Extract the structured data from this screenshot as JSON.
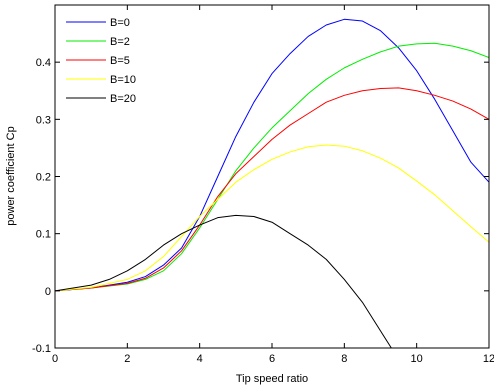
{
  "chart_data": {
    "type": "line",
    "title": "",
    "xlabel": "Tip speed ratio",
    "ylabel": "power coefficient Cp",
    "xlim": [
      0,
      12
    ],
    "ylim": [
      -0.1,
      0.5
    ],
    "xticks": [
      0,
      2,
      4,
      6,
      8,
      10,
      12
    ],
    "yticks": [
      -0.1,
      0,
      0.1,
      0.2,
      0.3,
      0.4
    ],
    "grid": false,
    "legend_position": "top-left",
    "series": [
      {
        "name": "B=0",
        "color": "#0000ff",
        "points": [
          [
            0,
            0
          ],
          [
            1,
            0.005
          ],
          [
            2,
            0.015
          ],
          [
            2.5,
            0.025
          ],
          [
            3,
            0.045
          ],
          [
            3.5,
            0.075
          ],
          [
            4,
            0.13
          ],
          [
            4.5,
            0.2
          ],
          [
            5,
            0.27
          ],
          [
            5.5,
            0.33
          ],
          [
            6,
            0.38
          ],
          [
            6.5,
            0.415
          ],
          [
            7,
            0.445
          ],
          [
            7.5,
            0.465
          ],
          [
            8,
            0.475
          ],
          [
            8.5,
            0.472
          ],
          [
            9,
            0.455
          ],
          [
            9.5,
            0.425
          ],
          [
            10,
            0.385
          ],
          [
            10.5,
            0.335
          ],
          [
            11,
            0.28
          ],
          [
            11.5,
            0.225
          ],
          [
            12,
            0.19
          ]
        ]
      },
      {
        "name": "B=2",
        "color": "#00ee00",
        "points": [
          [
            0,
            0
          ],
          [
            1,
            0.005
          ],
          [
            2,
            0.012
          ],
          [
            2.5,
            0.02
          ],
          [
            3,
            0.035
          ],
          [
            3.5,
            0.065
          ],
          [
            4,
            0.11
          ],
          [
            4.5,
            0.16
          ],
          [
            5,
            0.21
          ],
          [
            5.5,
            0.25
          ],
          [
            6,
            0.285
          ],
          [
            6.5,
            0.315
          ],
          [
            7,
            0.345
          ],
          [
            7.5,
            0.37
          ],
          [
            8,
            0.39
          ],
          [
            8.5,
            0.405
          ],
          [
            9,
            0.418
          ],
          [
            9.5,
            0.428
          ],
          [
            10,
            0.432
          ],
          [
            10.5,
            0.433
          ],
          [
            11,
            0.428
          ],
          [
            11.5,
            0.42
          ],
          [
            12,
            0.408
          ]
        ]
      },
      {
        "name": "B=5",
        "color": "#ff0000",
        "points": [
          [
            0,
            0
          ],
          [
            1,
            0.005
          ],
          [
            2,
            0.013
          ],
          [
            2.5,
            0.022
          ],
          [
            3,
            0.04
          ],
          [
            3.5,
            0.07
          ],
          [
            4,
            0.115
          ],
          [
            4.5,
            0.165
          ],
          [
            5,
            0.205
          ],
          [
            5.5,
            0.235
          ],
          [
            6,
            0.265
          ],
          [
            6.5,
            0.29
          ],
          [
            7,
            0.31
          ],
          [
            7.5,
            0.33
          ],
          [
            8,
            0.342
          ],
          [
            8.5,
            0.35
          ],
          [
            9,
            0.354
          ],
          [
            9.5,
            0.355
          ],
          [
            10,
            0.35
          ],
          [
            10.5,
            0.342
          ],
          [
            11,
            0.332
          ],
          [
            11.5,
            0.318
          ],
          [
            12,
            0.3
          ]
        ]
      },
      {
        "name": "B=10",
        "color": "#ffff00",
        "points": [
          [
            0,
            0
          ],
          [
            1,
            0.006
          ],
          [
            2,
            0.02
          ],
          [
            2.5,
            0.035
          ],
          [
            3,
            0.06
          ],
          [
            3.5,
            0.095
          ],
          [
            4,
            0.13
          ],
          [
            4.5,
            0.16
          ],
          [
            5,
            0.19
          ],
          [
            5.5,
            0.212
          ],
          [
            6,
            0.23
          ],
          [
            6.5,
            0.243
          ],
          [
            7,
            0.252
          ],
          [
            7.5,
            0.255
          ],
          [
            8,
            0.253
          ],
          [
            8.5,
            0.245
          ],
          [
            9,
            0.232
          ],
          [
            9.5,
            0.215
          ],
          [
            10,
            0.192
          ],
          [
            10.5,
            0.168
          ],
          [
            11,
            0.14
          ],
          [
            11.5,
            0.112
          ],
          [
            12,
            0.085
          ]
        ]
      },
      {
        "name": "B=20",
        "color": "#000000",
        "points": [
          [
            0,
            0
          ],
          [
            1,
            0.01
          ],
          [
            1.5,
            0.02
          ],
          [
            2,
            0.035
          ],
          [
            2.5,
            0.055
          ],
          [
            3,
            0.08
          ],
          [
            3.5,
            0.1
          ],
          [
            4,
            0.115
          ],
          [
            4.5,
            0.128
          ],
          [
            5,
            0.132
          ],
          [
            5.5,
            0.13
          ],
          [
            6,
            0.12
          ],
          [
            6.5,
            0.1
          ],
          [
            7,
            0.08
          ],
          [
            7.5,
            0.055
          ],
          [
            8,
            0.02
          ],
          [
            8.5,
            -0.02
          ],
          [
            9,
            -0.07
          ],
          [
            9.3,
            -0.1
          ]
        ]
      }
    ]
  }
}
